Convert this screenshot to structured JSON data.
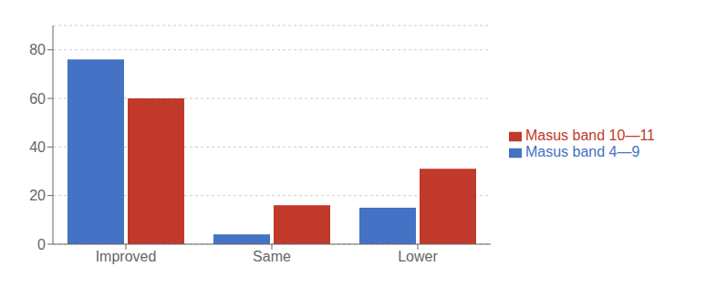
{
  "chart_data": {
    "type": "bar",
    "categories": [
      "Improved",
      "Same",
      "Lower"
    ],
    "series": [
      {
        "name": "Masus band 4—9",
        "color": "#4472C4",
        "values": [
          76,
          4,
          15
        ]
      },
      {
        "name": "Masus band 10—11",
        "color": "#C0392B",
        "values": [
          60,
          16,
          31
        ]
      }
    ],
    "ylim": [
      0,
      90
    ],
    "yticks": [
      0,
      20,
      40,
      60,
      80
    ],
    "grid": true,
    "legend": "right"
  }
}
